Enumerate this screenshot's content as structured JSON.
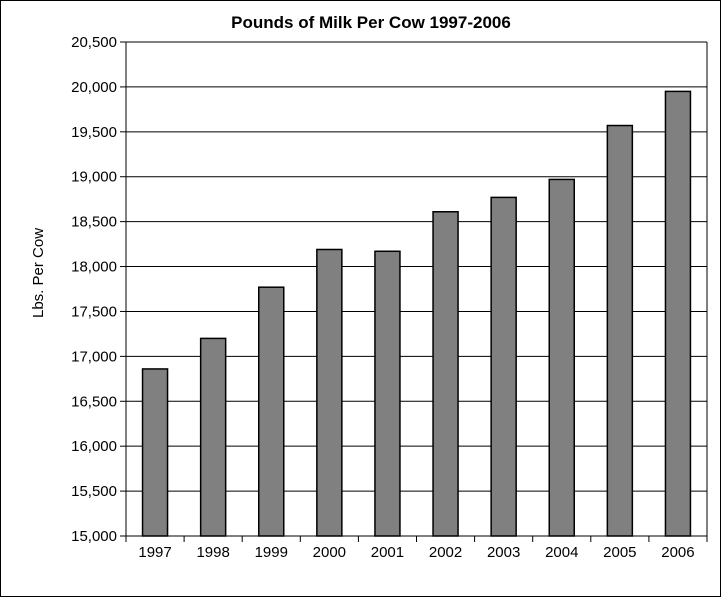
{
  "chart_data": {
    "type": "bar",
    "title": "Pounds of Milk Per Cow 1997-2006",
    "xlabel": "",
    "ylabel": "Lbs. Per Cow",
    "categories": [
      "1997",
      "1998",
      "1999",
      "2000",
      "2001",
      "2002",
      "2003",
      "2004",
      "2005",
      "2006"
    ],
    "values": [
      16860,
      17200,
      17770,
      18190,
      18170,
      18610,
      18770,
      18970,
      19570,
      19950
    ],
    "ylim": [
      15000,
      20500
    ],
    "yticks": [
      15000,
      15500,
      16000,
      16500,
      17000,
      17500,
      18000,
      18500,
      19000,
      19500,
      20000,
      20500
    ],
    "ytick_labels": [
      "15,000",
      "15,500",
      "16,000",
      "16,500",
      "17,000",
      "17,500",
      "18,000",
      "18,500",
      "19,000",
      "19,500",
      "20,000",
      "20,500"
    ],
    "grid": true,
    "legend": "none",
    "bar_color": "#808080"
  }
}
